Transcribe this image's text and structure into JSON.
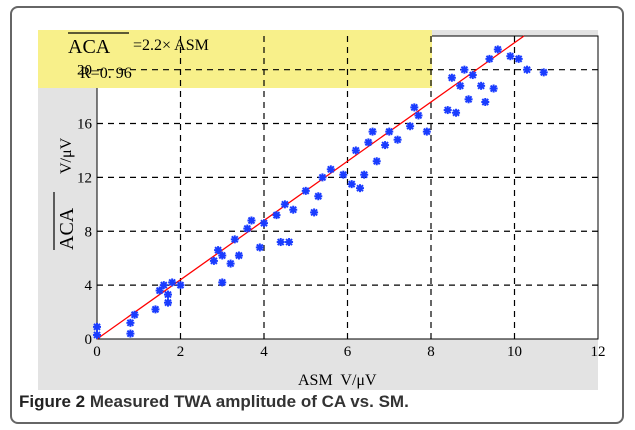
{
  "figure": {
    "caption_label": "Figure 2",
    "caption_text": "Measured TWA amplitude of CA vs. SM."
  },
  "chart_data": {
    "type": "scatter",
    "title": "",
    "xlabel": "ASM  V/μV",
    "ylabel_main": "ACA",
    "ylabel_unit": "V/μV",
    "xlim": [
      0,
      12
    ],
    "ylim": [
      0,
      24
    ],
    "xticks": [
      0,
      2,
      4,
      6,
      8,
      10,
      12
    ],
    "yticks": [
      0,
      4,
      8,
      12,
      16,
      20
    ],
    "grid": true,
    "annotation": {
      "formula_lhs": "ACA",
      "formula_rhs": "=2.2× ASM",
      "r_value": "R=0. 96",
      "background": "#f8f08a"
    },
    "fit_line": {
      "slope": 2.2,
      "intercept": 0,
      "color": "#ff0000"
    },
    "marker_color": "#1a3cff",
    "points": [
      [
        0.0,
        0.3
      ],
      [
        0.0,
        0.9
      ],
      [
        0.8,
        0.4
      ],
      [
        0.8,
        1.2
      ],
      [
        0.9,
        1.8
      ],
      [
        1.4,
        2.2
      ],
      [
        1.5,
        3.6
      ],
      [
        1.6,
        4.0
      ],
      [
        1.7,
        3.3
      ],
      [
        1.8,
        4.2
      ],
      [
        1.7,
        2.7
      ],
      [
        2.0,
        4.0
      ],
      [
        2.8,
        5.8
      ],
      [
        2.9,
        6.6
      ],
      [
        3.0,
        4.2
      ],
      [
        3.0,
        6.2
      ],
      [
        3.2,
        5.6
      ],
      [
        3.3,
        7.4
      ],
      [
        3.4,
        6.2
      ],
      [
        3.6,
        8.2
      ],
      [
        3.7,
        8.8
      ],
      [
        3.9,
        6.8
      ],
      [
        4.0,
        8.6
      ],
      [
        4.3,
        9.2
      ],
      [
        4.4,
        7.2
      ],
      [
        4.5,
        10.0
      ],
      [
        4.6,
        7.2
      ],
      [
        4.7,
        9.6
      ],
      [
        5.0,
        11.0
      ],
      [
        5.2,
        9.4
      ],
      [
        5.3,
        10.6
      ],
      [
        5.4,
        12.0
      ],
      [
        5.6,
        12.6
      ],
      [
        5.9,
        12.2
      ],
      [
        6.1,
        11.5
      ],
      [
        6.2,
        14.0
      ],
      [
        6.3,
        11.2
      ],
      [
        6.4,
        12.2
      ],
      [
        6.5,
        14.6
      ],
      [
        6.6,
        15.4
      ],
      [
        6.7,
        13.2
      ],
      [
        6.9,
        14.4
      ],
      [
        7.0,
        15.4
      ],
      [
        7.2,
        14.8
      ],
      [
        7.5,
        15.8
      ],
      [
        7.6,
        17.2
      ],
      [
        7.7,
        16.6
      ],
      [
        7.9,
        15.4
      ],
      [
        8.4,
        17.0
      ],
      [
        8.5,
        19.4
      ],
      [
        8.6,
        16.8
      ],
      [
        8.7,
        18.8
      ],
      [
        8.8,
        20.0
      ],
      [
        8.9,
        17.8
      ],
      [
        9.0,
        19.6
      ],
      [
        9.2,
        18.8
      ],
      [
        9.3,
        17.6
      ],
      [
        9.4,
        20.8
      ],
      [
        9.5,
        18.6
      ],
      [
        9.6,
        21.5
      ],
      [
        9.9,
        21.0
      ],
      [
        10.1,
        20.8
      ],
      [
        10.3,
        20.0
      ],
      [
        10.7,
        19.8
      ]
    ]
  }
}
